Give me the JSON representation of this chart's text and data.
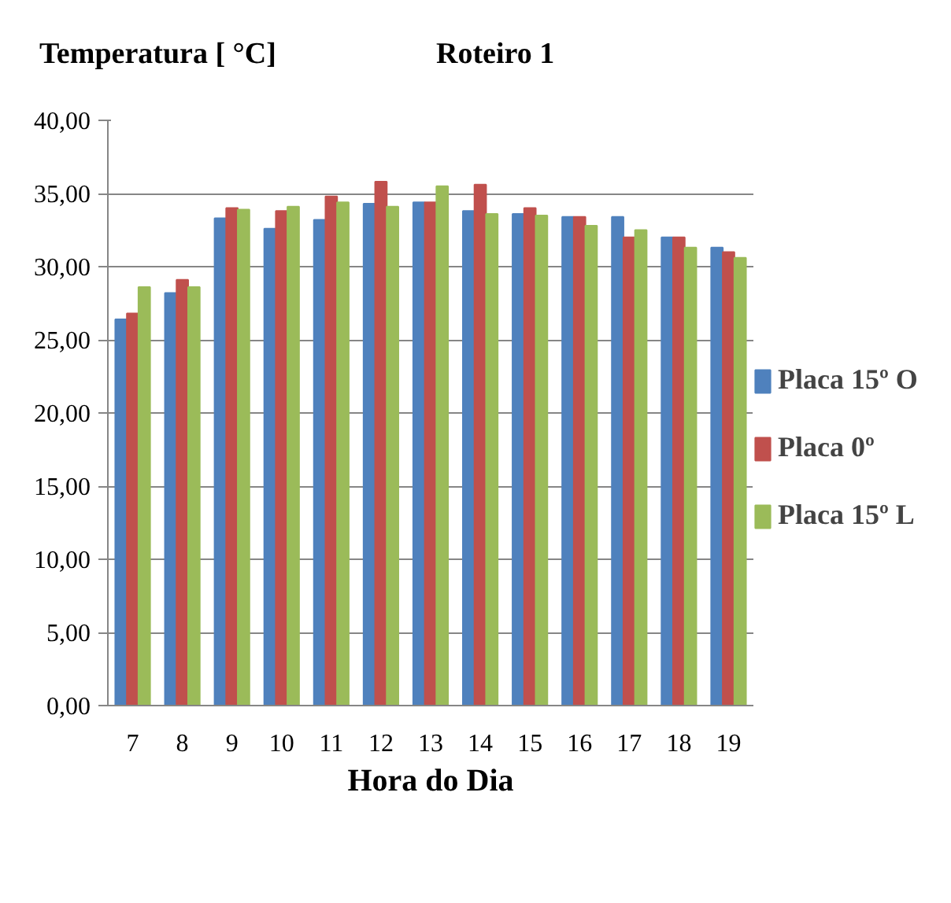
{
  "chart_data": {
    "type": "bar",
    "title": "Roteiro 1",
    "ylabel": "Temperatura [ °C]",
    "xlabel": "Hora do Dia",
    "categories": [
      "7",
      "8",
      "9",
      "10",
      "11",
      "12",
      "13",
      "14",
      "15",
      "16",
      "17",
      "18",
      "19"
    ],
    "series": [
      {
        "name": "Placa 15º O",
        "color": "#4f81bd",
        "values": [
          26.4,
          28.2,
          33.3,
          32.6,
          33.2,
          34.3,
          34.4,
          33.8,
          33.6,
          33.4,
          33.4,
          32.0,
          31.3
        ]
      },
      {
        "name": "Placa 0º",
        "color": "#c0504d",
        "values": [
          26.8,
          29.1,
          34.0,
          33.8,
          34.8,
          35.8,
          34.4,
          35.6,
          34.0,
          33.4,
          32.0,
          32.0,
          31.0
        ]
      },
      {
        "name": "Placa 15º L",
        "color": "#9bbb59",
        "values": [
          28.6,
          28.6,
          33.9,
          34.1,
          34.4,
          34.1,
          35.5,
          33.6,
          33.5,
          32.8,
          32.5,
          31.3,
          30.6
        ]
      }
    ],
    "ylim": [
      0,
      40
    ],
    "yticks": [
      {
        "value": 0,
        "label": "0,00"
      },
      {
        "value": 5,
        "label": "5,00"
      },
      {
        "value": 10,
        "label": "10,00"
      },
      {
        "value": 15,
        "label": "15,00"
      },
      {
        "value": 20,
        "label": "20,00"
      },
      {
        "value": 25,
        "label": "25,00"
      },
      {
        "value": 30,
        "label": "30,00"
      },
      {
        "value": 35,
        "label": "35,00"
      },
      {
        "value": 40,
        "label": "40,00"
      }
    ],
    "grid": "y",
    "legend": "right"
  }
}
